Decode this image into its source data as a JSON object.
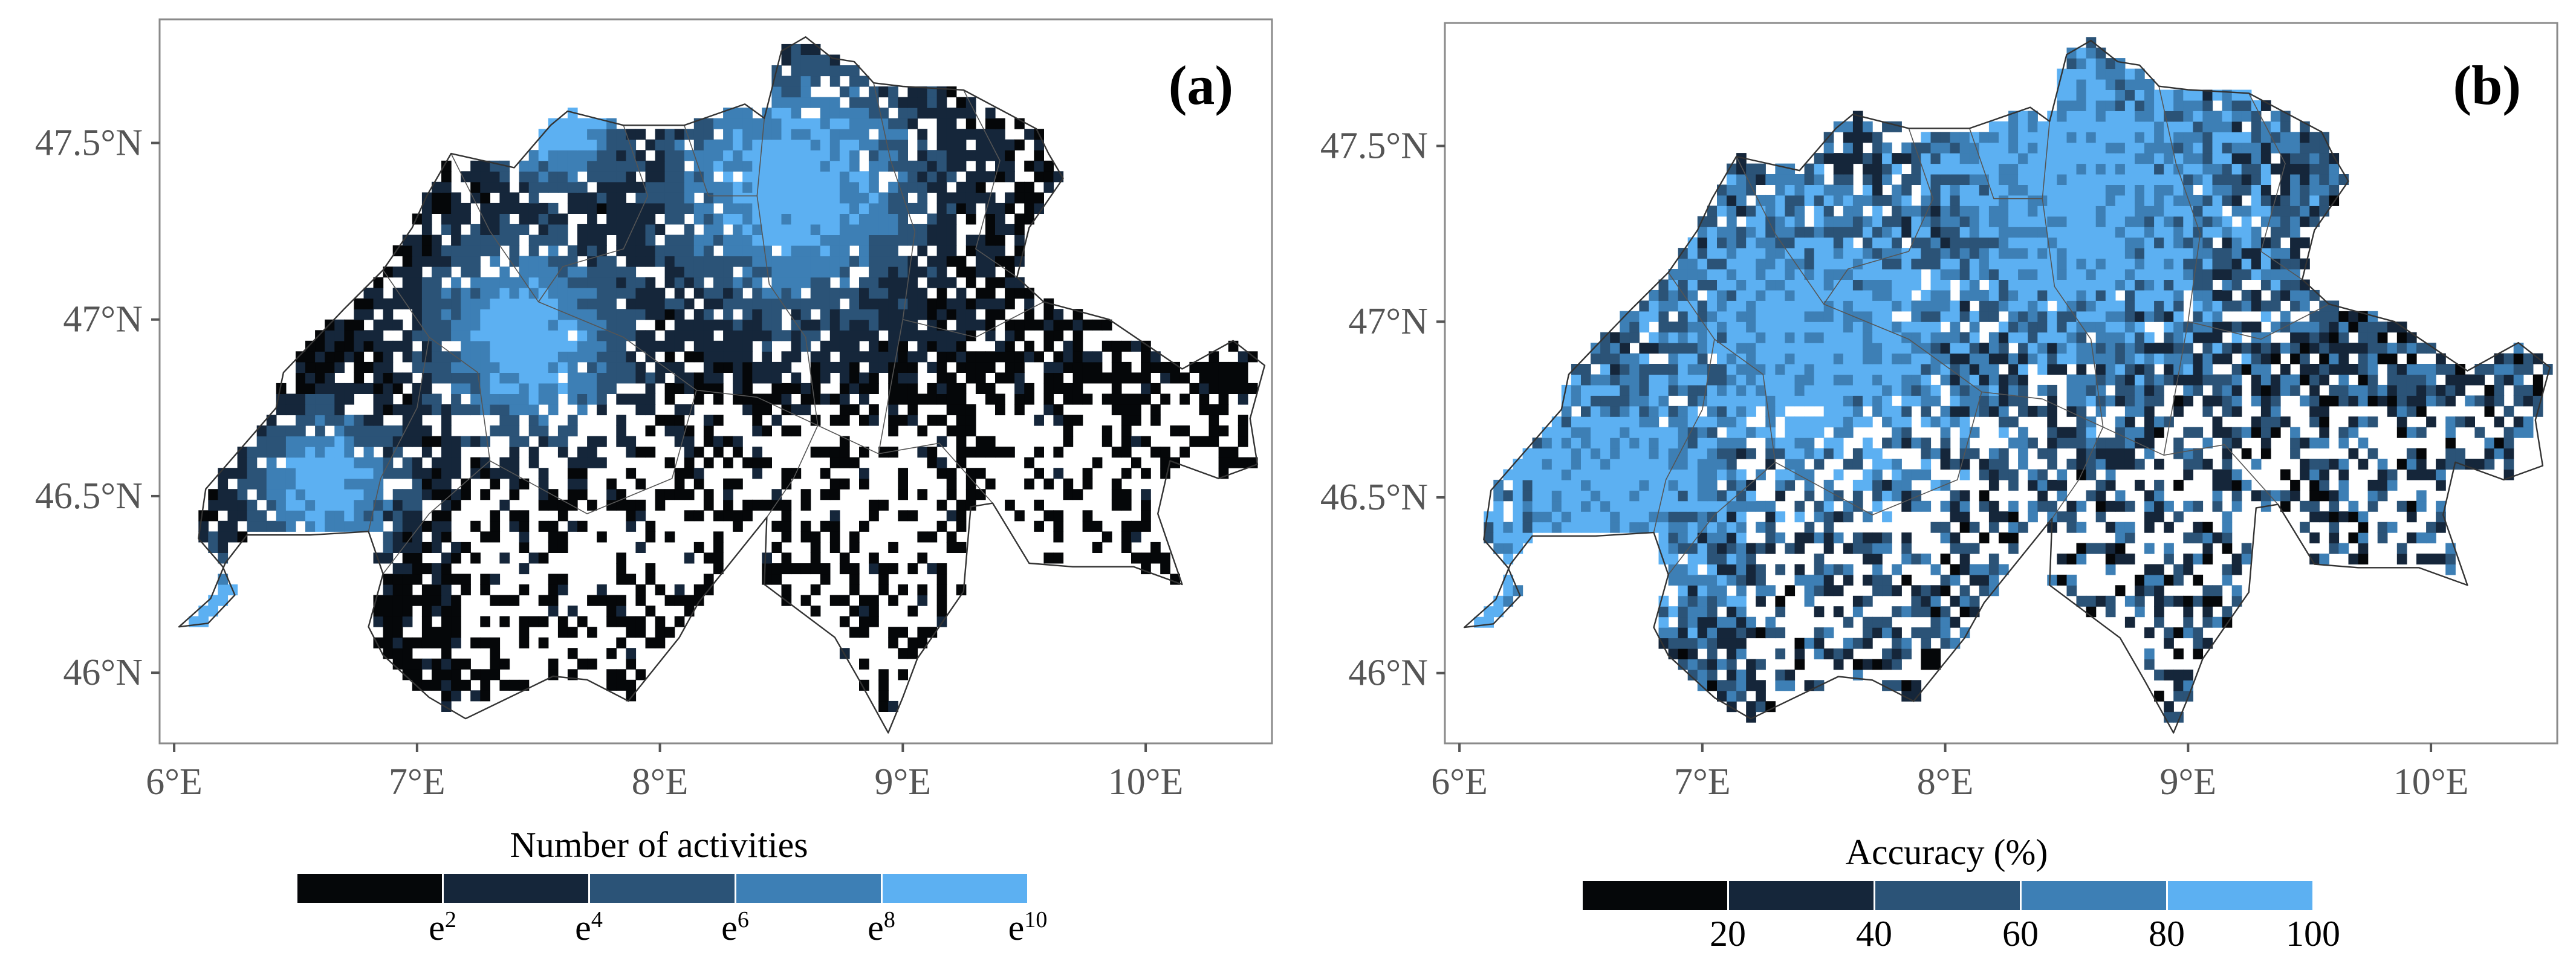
{
  "figure": {
    "panels": [
      {
        "id": "a",
        "tag": "(a)",
        "legend_title": "Number of activities",
        "legend_colors": [
          "#050709",
          "#15263a",
          "#2b5377",
          "#3d7fb5",
          "#5cb0f2"
        ],
        "legend_ticks": [
          {
            "base": "e",
            "exp": "2"
          },
          {
            "base": "e",
            "exp": "4"
          },
          {
            "base": "e",
            "exp": "6"
          },
          {
            "base": "e",
            "exp": "8"
          },
          {
            "base": "e",
            "exp": "10"
          }
        ],
        "hotspots": [
          {
            "lon": 8.55,
            "lat": 47.38,
            "r": 0.28
          },
          {
            "lon": 7.45,
            "lat": 46.95,
            "r": 0.22
          },
          {
            "lon": 6.62,
            "lat": 46.53,
            "r": 0.16
          },
          {
            "lon": 6.14,
            "lat": 46.2,
            "r": 0.12
          },
          {
            "lon": 7.59,
            "lat": 47.56,
            "r": 0.15
          }
        ]
      },
      {
        "id": "b",
        "tag": "(b)",
        "legend_title": "Accuracy (%)",
        "legend_colors": [
          "#050709",
          "#15263a",
          "#2b5377",
          "#3d7fb5",
          "#5cb0f2"
        ],
        "legend_ticks": [
          {
            "base": "20",
            "exp": ""
          },
          {
            "base": "40",
            "exp": ""
          },
          {
            "base": "60",
            "exp": ""
          },
          {
            "base": "80",
            "exp": ""
          },
          {
            "base": "100",
            "exp": ""
          }
        ],
        "hotspots": [
          {
            "lon": 8.55,
            "lat": 47.4,
            "r": 0.35
          },
          {
            "lon": 7.45,
            "lat": 46.95,
            "r": 0.3
          },
          {
            "lon": 6.62,
            "lat": 46.53,
            "r": 0.25
          },
          {
            "lon": 6.14,
            "lat": 46.2,
            "r": 0.15
          }
        ]
      }
    ],
    "x_axis": {
      "ticks": [
        {
          "value": 6,
          "label": "6°E"
        },
        {
          "value": 7,
          "label": "7°E"
        },
        {
          "value": 8,
          "label": "8°E"
        },
        {
          "value": 9,
          "label": "9°E"
        },
        {
          "value": 10,
          "label": "10°E"
        }
      ],
      "range": [
        5.94,
        10.52
      ]
    },
    "y_axis": {
      "ticks": [
        {
          "value": 46,
          "label": "46°N"
        },
        {
          "value": 46.5,
          "label": "46.5°N"
        },
        {
          "value": 47,
          "label": "47°N"
        },
        {
          "value": 47.5,
          "label": "47.5°N"
        }
      ],
      "range": [
        45.8,
        47.85
      ]
    },
    "grid": false,
    "map_region": "Switzerland",
    "country_border": [
      [
        6.02,
        46.13
      ],
      [
        6.14,
        46.14
      ],
      [
        6.25,
        46.22
      ],
      [
        6.2,
        46.3
      ],
      [
        6.1,
        46.38
      ],
      [
        6.13,
        46.52
      ],
      [
        6.42,
        46.75
      ],
      [
        6.45,
        46.85
      ],
      [
        6.7,
        47.03
      ],
      [
        6.86,
        47.14
      ],
      [
        6.98,
        47.26
      ],
      [
        7.04,
        47.35
      ],
      [
        7.14,
        47.47
      ],
      [
        7.4,
        47.43
      ],
      [
        7.55,
        47.55
      ],
      [
        7.62,
        47.59
      ],
      [
        7.85,
        47.55
      ],
      [
        8.1,
        47.55
      ],
      [
        8.35,
        47.61
      ],
      [
        8.43,
        47.57
      ],
      [
        8.5,
        47.76
      ],
      [
        8.6,
        47.8
      ],
      [
        8.71,
        47.74
      ],
      [
        8.8,
        47.73
      ],
      [
        8.88,
        47.67
      ],
      [
        9.0,
        47.66
      ],
      [
        9.25,
        47.65
      ],
      [
        9.55,
        47.54
      ],
      [
        9.6,
        47.47
      ],
      [
        9.66,
        47.4
      ],
      [
        9.52,
        47.26
      ],
      [
        9.47,
        47.12
      ],
      [
        9.58,
        47.05
      ],
      [
        9.85,
        47.0
      ],
      [
        10.15,
        46.86
      ],
      [
        10.36,
        46.94
      ],
      [
        10.49,
        46.87
      ],
      [
        10.43,
        46.72
      ],
      [
        10.46,
        46.59
      ],
      [
        10.3,
        46.55
      ],
      [
        10.1,
        46.6
      ],
      [
        10.05,
        46.45
      ],
      [
        10.15,
        46.25
      ],
      [
        9.95,
        46.3
      ],
      [
        9.7,
        46.3
      ],
      [
        9.52,
        46.31
      ],
      [
        9.37,
        46.48
      ],
      [
        9.28,
        46.47
      ],
      [
        9.25,
        46.23
      ],
      [
        9.06,
        46.04
      ],
      [
        9.0,
        45.93
      ],
      [
        8.94,
        45.83
      ],
      [
        8.82,
        45.98
      ],
      [
        8.72,
        46.1
      ],
      [
        8.43,
        46.25
      ],
      [
        8.44,
        46.44
      ],
      [
        8.16,
        46.2
      ],
      [
        8.08,
        46.1
      ],
      [
        7.87,
        45.92
      ],
      [
        7.7,
        45.98
      ],
      [
        7.56,
        45.99
      ],
      [
        7.2,
        45.87
      ],
      [
        7.05,
        45.93
      ],
      [
        6.86,
        46.05
      ],
      [
        6.8,
        46.13
      ],
      [
        6.86,
        46.28
      ],
      [
        6.8,
        46.4
      ],
      [
        6.56,
        46.39
      ],
      [
        6.3,
        46.39
      ],
      [
        6.21,
        46.31
      ],
      [
        6.15,
        46.21
      ],
      [
        6.02,
        46.13
      ]
    ],
    "canton_lines": [
      [
        [
          7.14,
          47.47
        ],
        [
          7.3,
          47.25
        ],
        [
          7.5,
          47.05
        ],
        [
          7.85,
          46.95
        ],
        [
          8.15,
          46.8
        ]
      ],
      [
        [
          6.86,
          47.14
        ],
        [
          7.05,
          46.95
        ],
        [
          7.0,
          46.75
        ],
        [
          6.85,
          46.55
        ],
        [
          6.8,
          46.4
        ]
      ],
      [
        [
          7.05,
          46.95
        ],
        [
          7.25,
          46.85
        ],
        [
          7.3,
          46.6
        ],
        [
          7.05,
          46.45
        ],
        [
          6.86,
          46.28
        ]
      ],
      [
        [
          8.15,
          46.8
        ],
        [
          8.4,
          46.78
        ],
        [
          8.65,
          46.7
        ],
        [
          8.9,
          46.62
        ],
        [
          9.15,
          46.65
        ],
        [
          9.37,
          46.48
        ]
      ],
      [
        [
          8.43,
          47.57
        ],
        [
          8.4,
          47.35
        ],
        [
          8.45,
          47.1
        ],
        [
          8.6,
          46.95
        ],
        [
          8.65,
          46.7
        ]
      ],
      [
        [
          8.88,
          47.67
        ],
        [
          8.95,
          47.45
        ],
        [
          9.05,
          47.25
        ],
        [
          9.0,
          47.0
        ],
        [
          8.9,
          46.62
        ]
      ],
      [
        [
          9.25,
          47.65
        ],
        [
          9.4,
          47.45
        ],
        [
          9.3,
          47.2
        ],
        [
          9.47,
          47.12
        ]
      ],
      [
        [
          7.85,
          47.55
        ],
        [
          7.95,
          47.35
        ],
        [
          7.85,
          47.2
        ],
        [
          7.6,
          47.15
        ],
        [
          7.5,
          47.05
        ]
      ],
      [
        [
          8.1,
          47.55
        ],
        [
          8.2,
          47.35
        ],
        [
          8.4,
          47.35
        ]
      ],
      [
        [
          7.3,
          46.6
        ],
        [
          7.7,
          46.45
        ],
        [
          8.05,
          46.55
        ],
        [
          8.15,
          46.8
        ]
      ],
      [
        [
          8.44,
          46.44
        ],
        [
          8.55,
          46.55
        ],
        [
          8.65,
          46.7
        ]
      ],
      [
        [
          9.0,
          47.0
        ],
        [
          9.3,
          46.95
        ],
        [
          9.58,
          47.05
        ]
      ]
    ]
  }
}
